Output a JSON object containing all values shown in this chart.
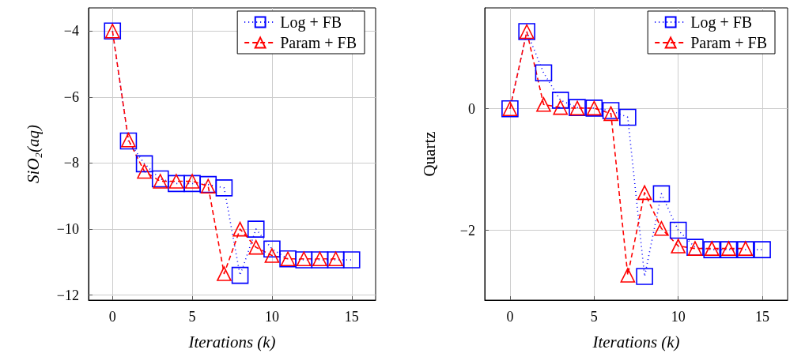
{
  "chart_data": [
    {
      "type": "line",
      "xlabel": "Iterations (k)",
      "ylabel": "SiO₂(aq)",
      "xlim": [
        -1.5,
        16.5
      ],
      "xticks": [
        0,
        5,
        10,
        15
      ],
      "ylim": [
        -12.15,
        -3.3
      ],
      "yticks": [
        -12,
        -10,
        -8,
        -6,
        -4
      ],
      "grid": true,
      "legend": "top right",
      "series": [
        {
          "name": "Log + FB",
          "color": "#0000ff",
          "marker": "square",
          "line_style": "dotted",
          "x": [
            0,
            1,
            2,
            3,
            4,
            5,
            6,
            7,
            8,
            9,
            10,
            11,
            12,
            13,
            14,
            15
          ],
          "values": [
            -4.0,
            -7.33,
            -8.02,
            -8.48,
            -8.62,
            -8.62,
            -8.65,
            -8.75,
            -11.4,
            -10.0,
            -10.6,
            -10.9,
            -10.93,
            -10.93,
            -10.93,
            -10.93
          ]
        },
        {
          "name": "Param + FB",
          "color": "#ff0000",
          "marker": "triangle",
          "line_style": "dashed",
          "x": [
            0,
            1,
            2,
            3,
            4,
            5,
            6,
            7,
            8,
            9,
            10,
            11,
            12,
            13,
            14
          ],
          "values": [
            -4.0,
            -7.3,
            -8.25,
            -8.55,
            -8.55,
            -8.55,
            -8.7,
            -11.35,
            -10.0,
            -10.55,
            -10.8,
            -10.9,
            -10.9,
            -10.9,
            -10.9
          ]
        }
      ]
    },
    {
      "type": "line",
      "xlabel": "Iterations (k)",
      "ylabel": "Quartz",
      "xlim": [
        -1.5,
        16.5
      ],
      "xticks": [
        0,
        5,
        10,
        15
      ],
      "ylim": [
        -3.15,
        1.66
      ],
      "yticks": [
        -2,
        0
      ],
      "grid": true,
      "legend": "top right",
      "series": [
        {
          "name": "Log + FB",
          "color": "#0000ff",
          "marker": "square",
          "line_style": "dotted",
          "x": [
            0,
            1,
            2,
            3,
            4,
            5,
            6,
            7,
            8,
            9,
            10,
            11,
            12,
            13,
            14,
            15
          ],
          "values": [
            0,
            1.27,
            0.59,
            0.14,
            0.02,
            0.01,
            -0.03,
            -0.14,
            -2.76,
            -1.4,
            -2.0,
            -2.28,
            -2.32,
            -2.32,
            -2.32,
            -2.32
          ]
        },
        {
          "name": "Param + FB",
          "color": "#ff0000",
          "marker": "triangle",
          "line_style": "dashed",
          "x": [
            0,
            1,
            2,
            3,
            4,
            5,
            6,
            7,
            8,
            9,
            10,
            11,
            12,
            13,
            14
          ],
          "values": [
            0,
            1.27,
            0.07,
            0.02,
            0.01,
            0.01,
            -0.08,
            -2.74,
            -1.38,
            -1.97,
            -2.26,
            -2.3,
            -2.3,
            -2.3,
            -2.3
          ]
        }
      ]
    }
  ]
}
